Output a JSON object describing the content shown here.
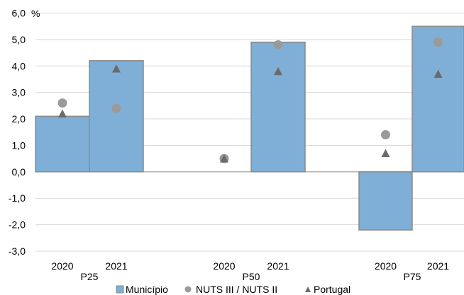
{
  "chart_data": {
    "type": "bar",
    "title": "",
    "ylabel": "%",
    "xlabel": "",
    "ylim": [
      -3.0,
      6.0
    ],
    "yticks": [
      "6,0",
      "5,0",
      "4,0",
      "3,0",
      "2,0",
      "1,0",
      "0,0",
      "-1,0",
      "-2,0",
      "-3,0"
    ],
    "ytick_values": [
      6,
      5,
      4,
      3,
      2,
      1,
      0,
      -1,
      -2,
      -3
    ],
    "grid": true,
    "legend_position": "bottom",
    "groups": [
      {
        "label": "P25",
        "years": [
          "2020",
          "2021"
        ]
      },
      {
        "label": "P50",
        "years": [
          "2020",
          "2021"
        ]
      },
      {
        "label": "P75",
        "years": [
          "2020",
          "2021"
        ]
      }
    ],
    "series": [
      {
        "name": "Município",
        "marker": "bar",
        "color": "#7fafd6",
        "values": [
          2.1,
          4.2,
          0.0,
          4.9,
          -2.2,
          5.5
        ]
      },
      {
        "name": "NUTS III / NUTS II",
        "marker": "circle",
        "color": "#9a9a9a",
        "values": [
          2.6,
          2.4,
          0.5,
          4.8,
          1.4,
          4.9
        ]
      },
      {
        "name": "Portugal",
        "marker": "triangle",
        "color": "#6b6b6b",
        "values": [
          2.2,
          3.9,
          0.5,
          3.8,
          0.7,
          3.7
        ]
      }
    ]
  }
}
